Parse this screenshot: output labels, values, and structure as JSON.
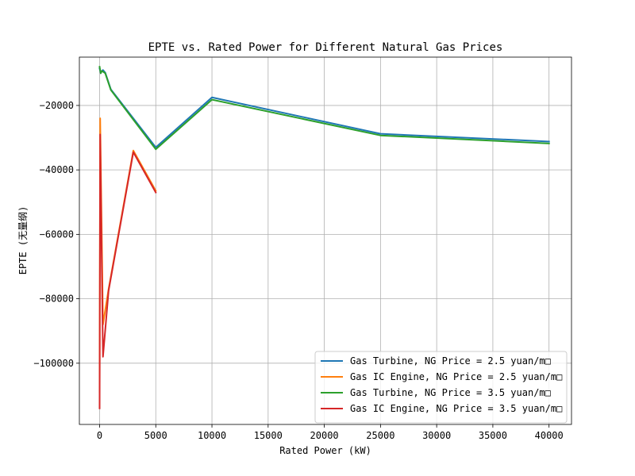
{
  "chart_data": {
    "type": "line",
    "title": "EPTE vs. Rated Power for Different Natural Gas Prices",
    "xlabel": "Rated Power (kW)",
    "ylabel": "EPTE (无量纲)",
    "xlim": [
      -1800,
      42000
    ],
    "ylim": [
      -119000,
      -5000
    ],
    "xticks": [
      0,
      5000,
      10000,
      15000,
      20000,
      25000,
      30000,
      35000,
      40000
    ],
    "xtick_labels": [
      "0",
      "5000",
      "10000",
      "15000",
      "20000",
      "25000",
      "30000",
      "35000",
      "40000"
    ],
    "yticks": [
      -20000,
      -40000,
      -60000,
      -80000,
      -100000
    ],
    "ytick_labels": [
      "−20000",
      "−40000",
      "−60000",
      "−80000",
      "−100000"
    ],
    "grid": true,
    "legend_position": "lower-right",
    "series": [
      {
        "name": "Gas Turbine, NG Price = 2.5 yuan/m□",
        "color": "#1f77b4",
        "points": [
          [
            0,
            -8500
          ],
          [
            100,
            -10000
          ],
          [
            200,
            -9300
          ],
          [
            300,
            -9000
          ],
          [
            500,
            -9800
          ],
          [
            1000,
            -15000
          ],
          [
            5000,
            -33000
          ],
          [
            10000,
            -17500
          ],
          [
            25000,
            -28800
          ],
          [
            40000,
            -31200
          ]
        ]
      },
      {
        "name": "Gas IC Engine, NG Price = 2.5 yuan/m□",
        "color": "#ff7f0e",
        "points": [
          [
            0,
            -109000
          ],
          [
            50,
            -24000
          ],
          [
            300,
            -88000
          ],
          [
            800,
            -77000
          ],
          [
            3000,
            -34000
          ],
          [
            5000,
            -46500
          ]
        ]
      },
      {
        "name": "Gas Turbine, NG Price = 3.5 yuan/m□",
        "color": "#2ca02c",
        "points": [
          [
            0,
            -8000
          ],
          [
            100,
            -10000
          ],
          [
            200,
            -9300
          ],
          [
            300,
            -9500
          ],
          [
            500,
            -10000
          ],
          [
            1000,
            -15200
          ],
          [
            5000,
            -33600
          ],
          [
            10000,
            -18200
          ],
          [
            25000,
            -29300
          ],
          [
            40000,
            -31800
          ]
        ]
      },
      {
        "name": "Gas IC Engine, NG Price = 3.5 yuan/m□",
        "color": "#d62728",
        "points": [
          [
            0,
            -114000
          ],
          [
            50,
            -29000
          ],
          [
            300,
            -98000
          ],
          [
            800,
            -77500
          ],
          [
            3000,
            -34500
          ],
          [
            5000,
            -47000
          ]
        ]
      }
    ]
  }
}
